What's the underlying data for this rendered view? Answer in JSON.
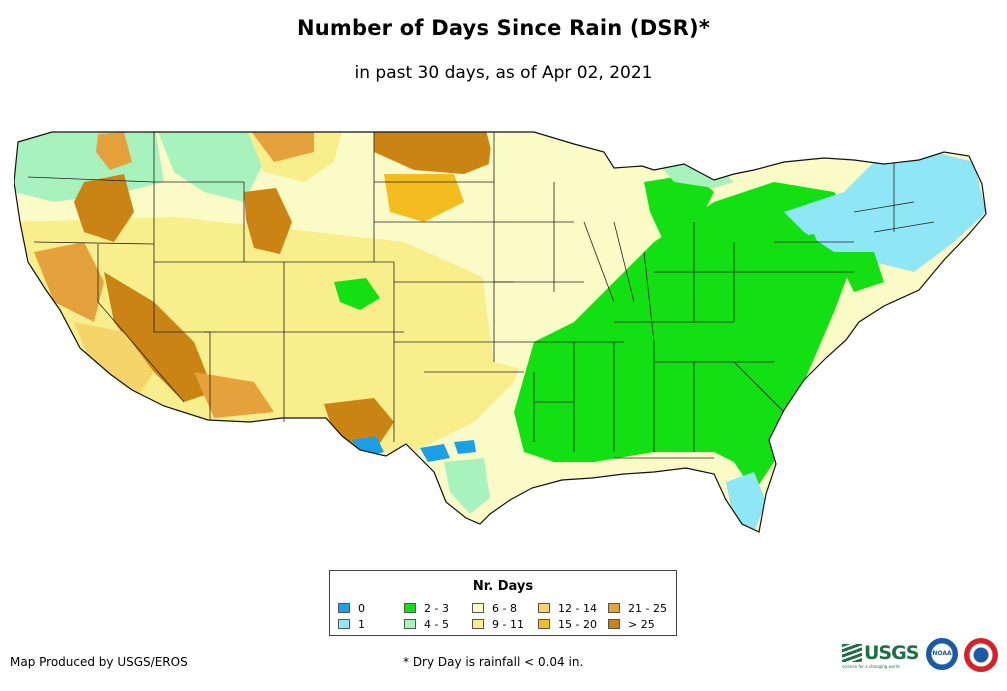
{
  "title": "Number of Days Since Rain (DSR)*",
  "subtitle": "in past 30 days, as of Apr 02, 2021",
  "legend": {
    "title": "Nr. Days",
    "items": [
      {
        "label": "0",
        "color": "#1aa0e6"
      },
      {
        "label": "1",
        "color": "#8fe6f5"
      },
      {
        "label": "2 - 3",
        "color": "#13e013"
      },
      {
        "label": "4 - 5",
        "color": "#a8f2be"
      },
      {
        "label": "6 - 8",
        "color": "#fafbc6"
      },
      {
        "label": "9 - 11",
        "color": "#f8ee8c"
      },
      {
        "label": "12 - 14",
        "color": "#f5d56a"
      },
      {
        "label": "15 - 20",
        "color": "#f3bd1f"
      },
      {
        "label": "21 - 25",
        "color": "#e5a23c"
      },
      {
        "label": "> 25",
        "color": "#c98413"
      }
    ]
  },
  "footer": {
    "credit": "Map Produced by USGS/EROS",
    "note": "* Dry Day is rainfall < 0.04 in."
  },
  "logos": {
    "usgs_text": "USGS",
    "usgs_tagline": "science for a changing world",
    "noaa_text": "NOAA"
  }
}
